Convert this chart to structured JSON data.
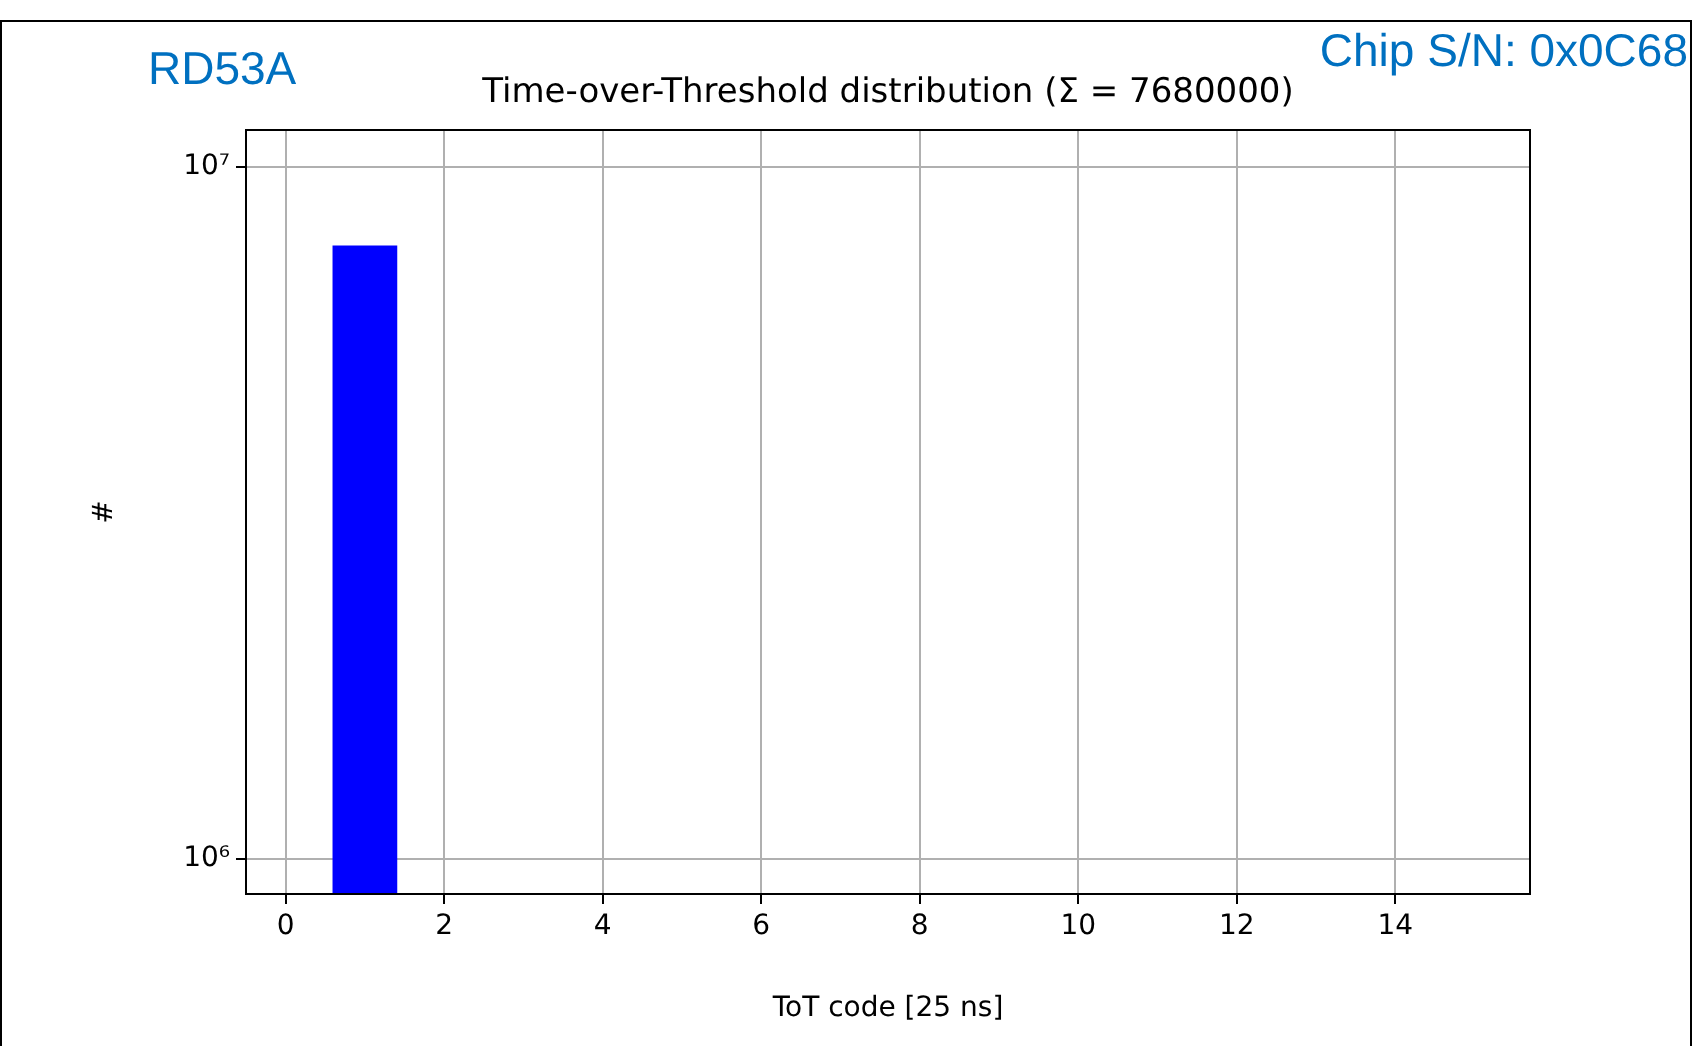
{
  "chart_data": {
    "type": "histogram",
    "title": "Time-over-Threshold distribution (Σ = 7680000)",
    "xlabel": "ToT code [25 ns]",
    "ylabel": "#",
    "bins": [
      0.6,
      1.4
    ],
    "values": [
      7680000
    ],
    "color": "#0000ff",
    "log": "y",
    "xlim": [
      -0.5,
      15.7
    ],
    "xticks": [
      0,
      2,
      4,
      6,
      8,
      10,
      12,
      14
    ],
    "ylim": [
      890000,
      11300000
    ],
    "yticks": [
      {
        "value": 1000000,
        "label": "10⁶"
      },
      {
        "value": 10000000,
        "label": "10⁷"
      }
    ],
    "grid": true,
    "annotations": [
      "RD53A",
      "Chip S/N: 0x0C68"
    ]
  }
}
